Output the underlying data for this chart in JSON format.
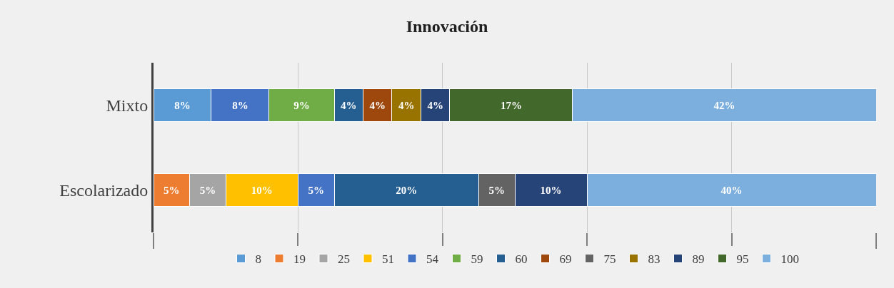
{
  "chart_data": {
    "type": "bar",
    "title": "Innovación",
    "orientation": "horizontal",
    "stacked": true,
    "categories": [
      "Mixto",
      "Escolarizado"
    ],
    "series": [
      {
        "name": "8",
        "color": "#5b9bd5",
        "values": [
          8,
          null
        ],
        "value_labels": [
          "8%",
          null
        ]
      },
      {
        "name": "19",
        "color": "#ed7d31",
        "values": [
          null,
          5
        ],
        "value_labels": [
          null,
          "5%"
        ]
      },
      {
        "name": "25",
        "color": "#a5a5a5",
        "values": [
          null,
          5
        ],
        "value_labels": [
          null,
          "5%"
        ]
      },
      {
        "name": "51",
        "color": "#ffc000",
        "values": [
          null,
          10
        ],
        "value_labels": [
          null,
          "10%"
        ]
      },
      {
        "name": "54",
        "color": "#4472c4",
        "values": [
          8,
          5
        ],
        "value_labels": [
          "8%",
          "5%"
        ]
      },
      {
        "name": "59",
        "color": "#70ad47",
        "values": [
          9,
          null
        ],
        "value_labels": [
          "9%",
          null
        ]
      },
      {
        "name": "60",
        "color": "#255e91",
        "values": [
          4,
          20
        ],
        "value_labels": [
          "4%",
          "20%"
        ]
      },
      {
        "name": "69",
        "color": "#9e480e",
        "values": [
          4,
          null
        ],
        "value_labels": [
          "4%",
          null
        ]
      },
      {
        "name": "75",
        "color": "#636363",
        "values": [
          null,
          5
        ],
        "value_labels": [
          null,
          "5%"
        ]
      },
      {
        "name": "83",
        "color": "#997300",
        "values": [
          4,
          null
        ],
        "value_labels": [
          "4%",
          null
        ]
      },
      {
        "name": "89",
        "color": "#264478",
        "values": [
          4,
          10
        ],
        "value_labels": [
          "4%",
          "10%"
        ]
      },
      {
        "name": "95",
        "color": "#43682b",
        "values": [
          17,
          null
        ],
        "value_labels": [
          "17%",
          null
        ]
      },
      {
        "name": "100",
        "color": "#7cafdd",
        "values": [
          42,
          40
        ],
        "value_labels": [
          "42%",
          "40%"
        ]
      }
    ],
    "grid": "x",
    "legend": "bottom",
    "tick_labels": "y"
  }
}
